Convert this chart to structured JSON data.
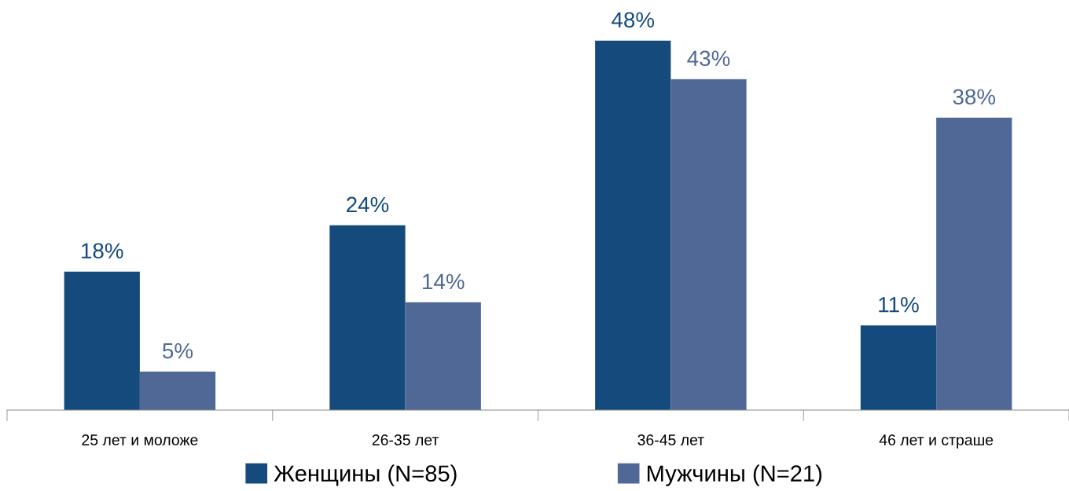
{
  "chart_data": {
    "type": "bar",
    "categories": [
      "25 лет и моложе",
      "26-35 лет",
      "36-45 лет",
      "46 лет и страше"
    ],
    "series": [
      {
        "name": "Женщины (N=85)",
        "color": "#154a7c",
        "values": [
          18,
          24,
          48,
          11
        ],
        "value_labels": [
          "18%",
          "24%",
          "48%",
          "11%"
        ]
      },
      {
        "name": "Мужчины (N=21)",
        "color": "#506896",
        "values": [
          5,
          14,
          43,
          38
        ],
        "value_labels": [
          "5%",
          "14%",
          "43%",
          "38%"
        ]
      }
    ],
    "legend": "bottom",
    "grid": false,
    "tick_labels": "x"
  }
}
